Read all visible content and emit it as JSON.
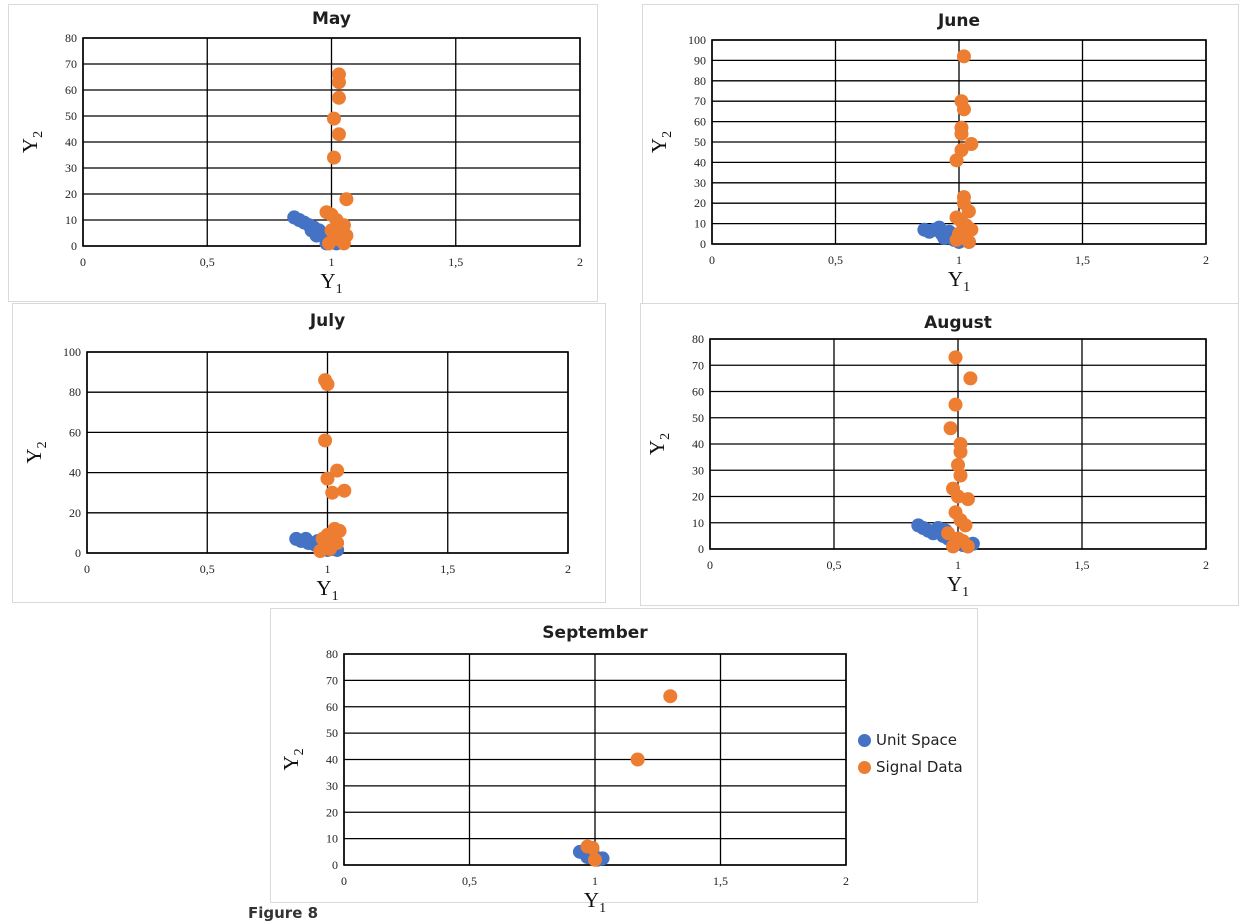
{
  "legend": {
    "unit_space": "Unit Space",
    "signal_data": "Signal Data"
  },
  "colors": {
    "unit_space": "#4472c4",
    "signal_data": "#ed7d31"
  },
  "caption": "Figure 8",
  "chart_data": [
    {
      "type": "scatter",
      "title": "May",
      "xlabel": "Y",
      "xlabel_sub": "1",
      "ylabel": "Y",
      "ylabel_sub": "2",
      "xlim": [
        0,
        2
      ],
      "ylim": [
        0,
        80
      ],
      "xticks": [
        "0",
        "0,5",
        "1",
        "1,5",
        "2"
      ],
      "y_step": 10,
      "grid": true,
      "series": [
        {
          "name": "Unit Space",
          "points": [
            [
              0.85,
              11
            ],
            [
              0.87,
              10
            ],
            [
              0.89,
              9
            ],
            [
              0.91,
              8
            ],
            [
              0.93,
              7
            ],
            [
              0.95,
              6
            ],
            [
              0.96,
              5
            ],
            [
              0.97,
              4
            ],
            [
              0.98,
              3
            ],
            [
              0.99,
              2
            ],
            [
              1.0,
              1.5
            ],
            [
              1.02,
              1
            ],
            [
              1.04,
              2
            ],
            [
              0.94,
              4
            ],
            [
              0.92,
              6
            ],
            [
              1.01,
              3
            ],
            [
              0.98,
              1
            ]
          ]
        },
        {
          "name": "Signal Data",
          "points": [
            [
              1.03,
              66
            ],
            [
              1.03,
              63
            ],
            [
              1.03,
              57
            ],
            [
              1.01,
              49
            ],
            [
              1.03,
              43
            ],
            [
              1.01,
              34
            ],
            [
              1.06,
              18
            ],
            [
              0.98,
              13
            ],
            [
              1.0,
              12
            ],
            [
              1.02,
              10
            ],
            [
              1.05,
              8
            ],
            [
              1.0,
              6
            ],
            [
              1.03,
              5
            ],
            [
              1.06,
              4
            ],
            [
              1.01,
              3
            ],
            [
              1.04,
              2
            ],
            [
              0.99,
              1
            ],
            [
              1.05,
              1
            ]
          ]
        }
      ]
    },
    {
      "type": "scatter",
      "title": "June",
      "xlabel": "Y",
      "xlabel_sub": "1",
      "ylabel": "Y",
      "ylabel_sub": "2",
      "xlim": [
        0,
        2
      ],
      "ylim": [
        0,
        100
      ],
      "xticks": [
        "0",
        "0,5",
        "1",
        "1,5",
        "2"
      ],
      "y_step": 10,
      "grid": true,
      "series": [
        {
          "name": "Unit Space",
          "points": [
            [
              0.86,
              7
            ],
            [
              0.88,
              6
            ],
            [
              0.9,
              7
            ],
            [
              0.92,
              8
            ],
            [
              0.93,
              5
            ],
            [
              0.95,
              4
            ],
            [
              0.97,
              3
            ],
            [
              0.98,
              2
            ],
            [
              1.0,
              1
            ],
            [
              1.02,
              2
            ],
            [
              1.04,
              1
            ],
            [
              0.96,
              6
            ],
            [
              0.94,
              3
            ]
          ]
        },
        {
          "name": "Signal Data",
          "points": [
            [
              1.02,
              92
            ],
            [
              1.01,
              70
            ],
            [
              1.02,
              66
            ],
            [
              1.01,
              57
            ],
            [
              1.01,
              54
            ],
            [
              1.05,
              49
            ],
            [
              1.01,
              46
            ],
            [
              0.99,
              41
            ],
            [
              1.02,
              23
            ],
            [
              1.02,
              20
            ],
            [
              1.04,
              16
            ],
            [
              0.99,
              13
            ],
            [
              1.01,
              11
            ],
            [
              1.03,
              9
            ],
            [
              1.05,
              7
            ],
            [
              1.0,
              5
            ],
            [
              1.02,
              3
            ],
            [
              0.99,
              2
            ],
            [
              1.04,
              1
            ]
          ]
        }
      ]
    },
    {
      "type": "scatter",
      "title": "July",
      "xlabel": "Y",
      "xlabel_sub": "1",
      "ylabel": "Y",
      "ylabel_sub": "2",
      "xlim": [
        0,
        2
      ],
      "ylim": [
        0,
        100
      ],
      "xticks": [
        "0",
        "0,5",
        "1",
        "1,5",
        "2"
      ],
      "y_step": 20,
      "grid": true,
      "series": [
        {
          "name": "Unit Space",
          "points": [
            [
              0.87,
              7
            ],
            [
              0.89,
              6
            ],
            [
              0.91,
              7
            ],
            [
              0.93,
              5
            ],
            [
              0.95,
              4
            ],
            [
              0.97,
              3
            ],
            [
              0.98,
              2
            ],
            [
              1.0,
              1.5
            ],
            [
              1.02,
              2
            ],
            [
              1.04,
              1.5
            ],
            [
              0.96,
              6
            ],
            [
              0.92,
              5
            ]
          ]
        },
        {
          "name": "Signal Data",
          "points": [
            [
              0.99,
              86
            ],
            [
              1.0,
              84
            ],
            [
              0.99,
              56
            ],
            [
              1.04,
              41
            ],
            [
              1.0,
              37
            ],
            [
              1.07,
              31
            ],
            [
              1.02,
              30
            ],
            [
              1.03,
              12
            ],
            [
              1.05,
              11
            ],
            [
              1.0,
              9
            ],
            [
              0.98,
              7
            ],
            [
              1.02,
              6
            ],
            [
              1.04,
              5
            ],
            [
              0.99,
              4
            ],
            [
              1.01,
              2
            ],
            [
              0.97,
              1
            ]
          ]
        }
      ]
    },
    {
      "type": "scatter",
      "title": "August",
      "xlabel": "Y",
      "xlabel_sub": "1",
      "ylabel": "Y",
      "ylabel_sub": "2",
      "xlim": [
        0,
        2
      ],
      "ylim": [
        0,
        80
      ],
      "xticks": [
        "0",
        "0,5",
        "1",
        "1,5",
        "2"
      ],
      "y_step": 10,
      "grid": true,
      "series": [
        {
          "name": "Unit Space",
          "points": [
            [
              0.84,
              9
            ],
            [
              0.86,
              8
            ],
            [
              0.88,
              7
            ],
            [
              0.9,
              6
            ],
            [
              0.92,
              8
            ],
            [
              0.94,
              5
            ],
            [
              0.96,
              4
            ],
            [
              0.98,
              3
            ],
            [
              1.0,
              2
            ],
            [
              1.02,
              1.5
            ],
            [
              1.04,
              1
            ],
            [
              0.95,
              7
            ],
            [
              1.06,
              2
            ]
          ]
        },
        {
          "name": "Signal Data",
          "points": [
            [
              0.99,
              73
            ],
            [
              1.05,
              65
            ],
            [
              0.99,
              55
            ],
            [
              0.97,
              46
            ],
            [
              1.01,
              40
            ],
            [
              1.01,
              37
            ],
            [
              1.0,
              32
            ],
            [
              1.01,
              28
            ],
            [
              0.98,
              23
            ],
            [
              1.0,
              20
            ],
            [
              1.04,
              19
            ],
            [
              0.99,
              14
            ],
            [
              1.01,
              11
            ],
            [
              1.03,
              9
            ],
            [
              0.96,
              6
            ],
            [
              1.0,
              4
            ],
            [
              1.02,
              3
            ],
            [
              0.98,
              1
            ],
            [
              1.04,
              1
            ]
          ]
        }
      ]
    },
    {
      "type": "scatter",
      "title": "September",
      "xlabel": "Y",
      "xlabel_sub": "1",
      "ylabel": "Y",
      "ylabel_sub": "2",
      "xlim": [
        0,
        2
      ],
      "ylim": [
        0,
        80
      ],
      "xticks": [
        "0",
        "0,5",
        "1",
        "1,5",
        "2"
      ],
      "y_step": 10,
      "grid": true,
      "legend": "right",
      "series": [
        {
          "name": "Unit Space",
          "points": [
            [
              0.94,
              5
            ],
            [
              0.96,
              4.5
            ],
            [
              0.98,
              4
            ],
            [
              1.0,
              3
            ],
            [
              1.01,
              2
            ],
            [
              1.03,
              2.5
            ],
            [
              0.99,
              5
            ],
            [
              0.97,
              3
            ]
          ]
        },
        {
          "name": "Signal Data",
          "points": [
            [
              1.3,
              64
            ],
            [
              1.17,
              40
            ],
            [
              0.97,
              7
            ],
            [
              0.99,
              6.5
            ],
            [
              1.0,
              2
            ]
          ]
        }
      ]
    }
  ]
}
